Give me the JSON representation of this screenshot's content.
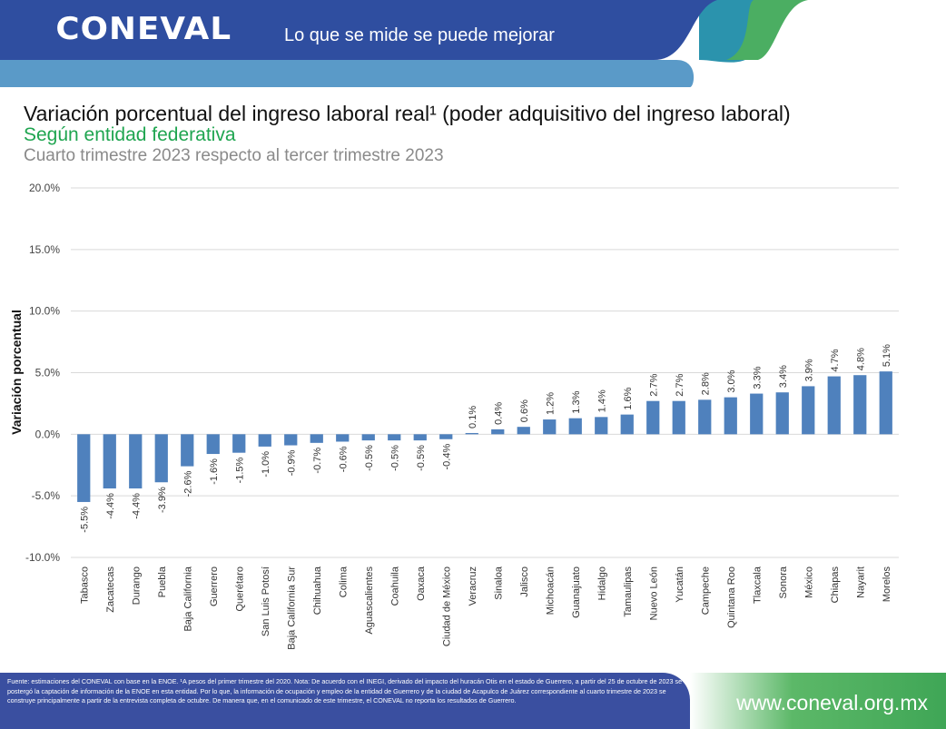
{
  "header": {
    "logo": "CONEVAL",
    "slogan": "Lo que se mide se puede mejorar"
  },
  "titles": {
    "title": "Variación porcentual del ingreso laboral real¹ (poder adquisitivo del ingreso laboral)",
    "subtitle": "Según entidad federativa",
    "period": "Cuarto trimestre 2023 respecto al tercer trimestre 2023"
  },
  "colors": {
    "bar": "#4f81bd",
    "header_dark": "#2f4ea0",
    "header_light": "#5a9ac8",
    "accent_green": "#1fa550"
  },
  "chart_data": {
    "type": "bar",
    "ylabel": "Variación porcentual",
    "ylim": [
      -10,
      20
    ],
    "yticks": [
      "20.0%",
      "15.0%",
      "10.0%",
      "5.0%",
      "0.0%",
      "-5.0%",
      "-10.0%"
    ],
    "ytick_values": [
      20,
      15,
      10,
      5,
      0,
      -5,
      -10
    ],
    "grid": true,
    "categories": [
      "Tabasco",
      "Zacatecas",
      "Durango",
      "Puebla",
      "Baja California",
      "Guerrero",
      "Querétaro",
      "San Luis Potosí",
      "Baja California Sur",
      "Chihuahua",
      "Colima",
      "Aguascalientes",
      "Coahuila",
      "Oaxaca",
      "Ciudad de México",
      "Veracruz",
      "Sinaloa",
      "Jalisco",
      "Michoacán",
      "Guanajuato",
      "Hidalgo",
      "Tamaulipas",
      "Nuevo León",
      "Yucatán",
      "Campeche",
      "Quintana Roo",
      "Tlaxcala",
      "Sonora",
      "México",
      "Chiapas",
      "Nayarit",
      "Morelos"
    ],
    "values": [
      -5.5,
      -4.4,
      -4.4,
      -3.9,
      -2.6,
      -1.6,
      -1.5,
      -1.0,
      -0.9,
      -0.7,
      -0.6,
      -0.5,
      -0.5,
      -0.5,
      -0.4,
      0.1,
      0.4,
      0.6,
      1.2,
      1.3,
      1.4,
      1.6,
      2.7,
      2.7,
      2.8,
      3.0,
      3.3,
      3.4,
      3.9,
      4.7,
      4.8,
      5.1
    ],
    "labels": [
      "-5.5%",
      "-4.4%",
      "-4.4%",
      "-3.9%",
      "-2.6%",
      "-1.6%",
      "-1.5%",
      "-1.0%",
      "-0.9%",
      "-0.7%",
      "-0.6%",
      "-0.5%",
      "-0.5%",
      "-0.5%",
      "-0.4%",
      "0.1%",
      "0.4%",
      "0.6%",
      "1.2%",
      "1.3%",
      "1.4%",
      "1.6%",
      "2.7%",
      "2.7%",
      "2.8%",
      "3.0%",
      "3.3%",
      "3.4%",
      "3.9%",
      "4.7%",
      "4.8%",
      "5.1%"
    ]
  },
  "footer": {
    "note": "Fuente: estimaciones del CONEVAL con base en la ENOE. ¹A pesos del primer trimestre del 2020. Nota: De acuerdo con el INEGI, derivado del impacto del huracán Otis en el estado de Guerrero, a partir del 25 de octubre de 2023 se postergó la captación de información de la ENOE en esta entidad. Por lo que, la información de ocupación y empleo de la entidad de Guerrero y de la ciudad de Acapulco de Juárez correspondiente al cuarto trimestre de 2023 se construye principalmente a partir de la entrevista completa de octubre. De manera que, en el comunicado de este trimestre, el CONEVAL no reporta los resultados de Guerrero.",
    "website": "www.coneval.org.mx"
  }
}
